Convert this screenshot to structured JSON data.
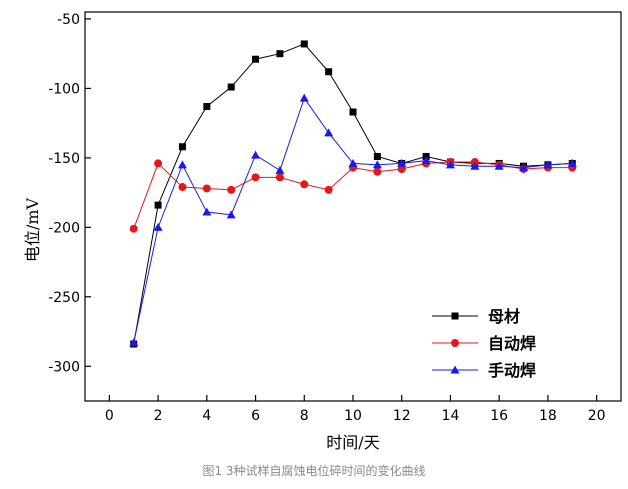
{
  "chart_data": {
    "type": "line",
    "title": "",
    "xlabel": "时间/天",
    "ylabel": "电位/mV",
    "xlim": [
      -1,
      21
    ],
    "ylim": [
      -325,
      -45
    ],
    "xticks": [
      0,
      2,
      4,
      6,
      8,
      10,
      12,
      14,
      16,
      18,
      20
    ],
    "yticks": [
      -300,
      -250,
      -200,
      -150,
      -100,
      -50
    ],
    "grid": false,
    "legend_position": "bottom-right",
    "series": [
      {
        "name": "母材",
        "color": "#000000",
        "marker": "square",
        "x": [
          1,
          2,
          3,
          4,
          5,
          6,
          7,
          8,
          9,
          10,
          11,
          12,
          13,
          14,
          15,
          16,
          17,
          18,
          19
        ],
        "y": [
          -284,
          -184,
          -142,
          -113,
          -99,
          -79,
          -75,
          -68,
          -88,
          -117,
          -149,
          -154,
          -149,
          -153,
          -154,
          -154,
          -156,
          -155,
          -154
        ]
      },
      {
        "name": "自动焊",
        "color": "#e8151b",
        "marker": "circle",
        "x": [
          1,
          2,
          3,
          4,
          5,
          6,
          7,
          8,
          9,
          10,
          11,
          12,
          13,
          14,
          15,
          16,
          17,
          18,
          19
        ],
        "y": [
          -201,
          -154,
          -171,
          -172,
          -173,
          -164,
          -164,
          -169,
          -173,
          -157,
          -160,
          -158,
          -154,
          -153,
          -153,
          -155,
          -158,
          -157,
          -157
        ]
      },
      {
        "name": "手动焊",
        "color": "#1a1aef",
        "marker": "triangle",
        "x": [
          1,
          2,
          3,
          4,
          5,
          6,
          7,
          8,
          9,
          10,
          11,
          12,
          13,
          14,
          15,
          16,
          17,
          18,
          19
        ],
        "y": [
          -283,
          -200,
          -155,
          -189,
          -191,
          -148,
          -159,
          -107,
          -132,
          -154,
          -155,
          -154,
          -152,
          -155,
          -156,
          -156,
          -157,
          -155,
          -154
        ]
      }
    ]
  },
  "caption": "图1 3种试样自腐蚀电位碎时间的变化曲线"
}
